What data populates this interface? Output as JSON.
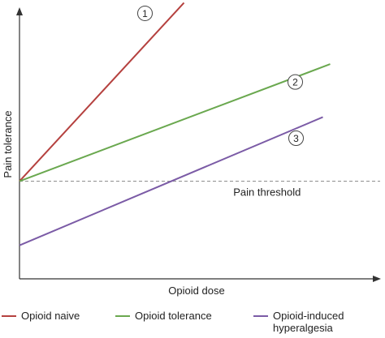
{
  "chart_data": {
    "type": "line",
    "title": "",
    "xlabel": "Opioid dose",
    "ylabel": "Pain tolerance",
    "xlim": [
      0,
      10
    ],
    "ylim": [
      0,
      10
    ],
    "grid": false,
    "legend_position": "bottom",
    "series": [
      {
        "name": "Opioid naive",
        "marker": "1",
        "color": "#b5413f",
        "x": [
          0,
          4.5
        ],
        "y": [
          3.5,
          9.9
        ]
      },
      {
        "name": "Opioid tolerance",
        "marker": "2",
        "color": "#6aa84f",
        "x": [
          0,
          8.5
        ],
        "y": [
          3.5,
          7.7
        ]
      },
      {
        "name": "Opioid-induced hyperalgesia",
        "marker": "3",
        "color": "#7b5ba6",
        "x": [
          0,
          8.3
        ],
        "y": [
          1.2,
          5.8
        ]
      }
    ],
    "annotations": [
      {
        "text": "Pain threshold",
        "type": "hline",
        "y": 3.5,
        "color": "#888888",
        "style": "dashed"
      }
    ]
  },
  "legend": {
    "items": [
      {
        "lines": [
          "Opioid naive"
        ],
        "color": "#b5413f"
      },
      {
        "lines": [
          "Opioid tolerance"
        ],
        "color": "#6aa84f"
      },
      {
        "lines": [
          "Opioid-induced",
          "hyperalgesia"
        ],
        "color": "#7b5ba6"
      }
    ]
  }
}
